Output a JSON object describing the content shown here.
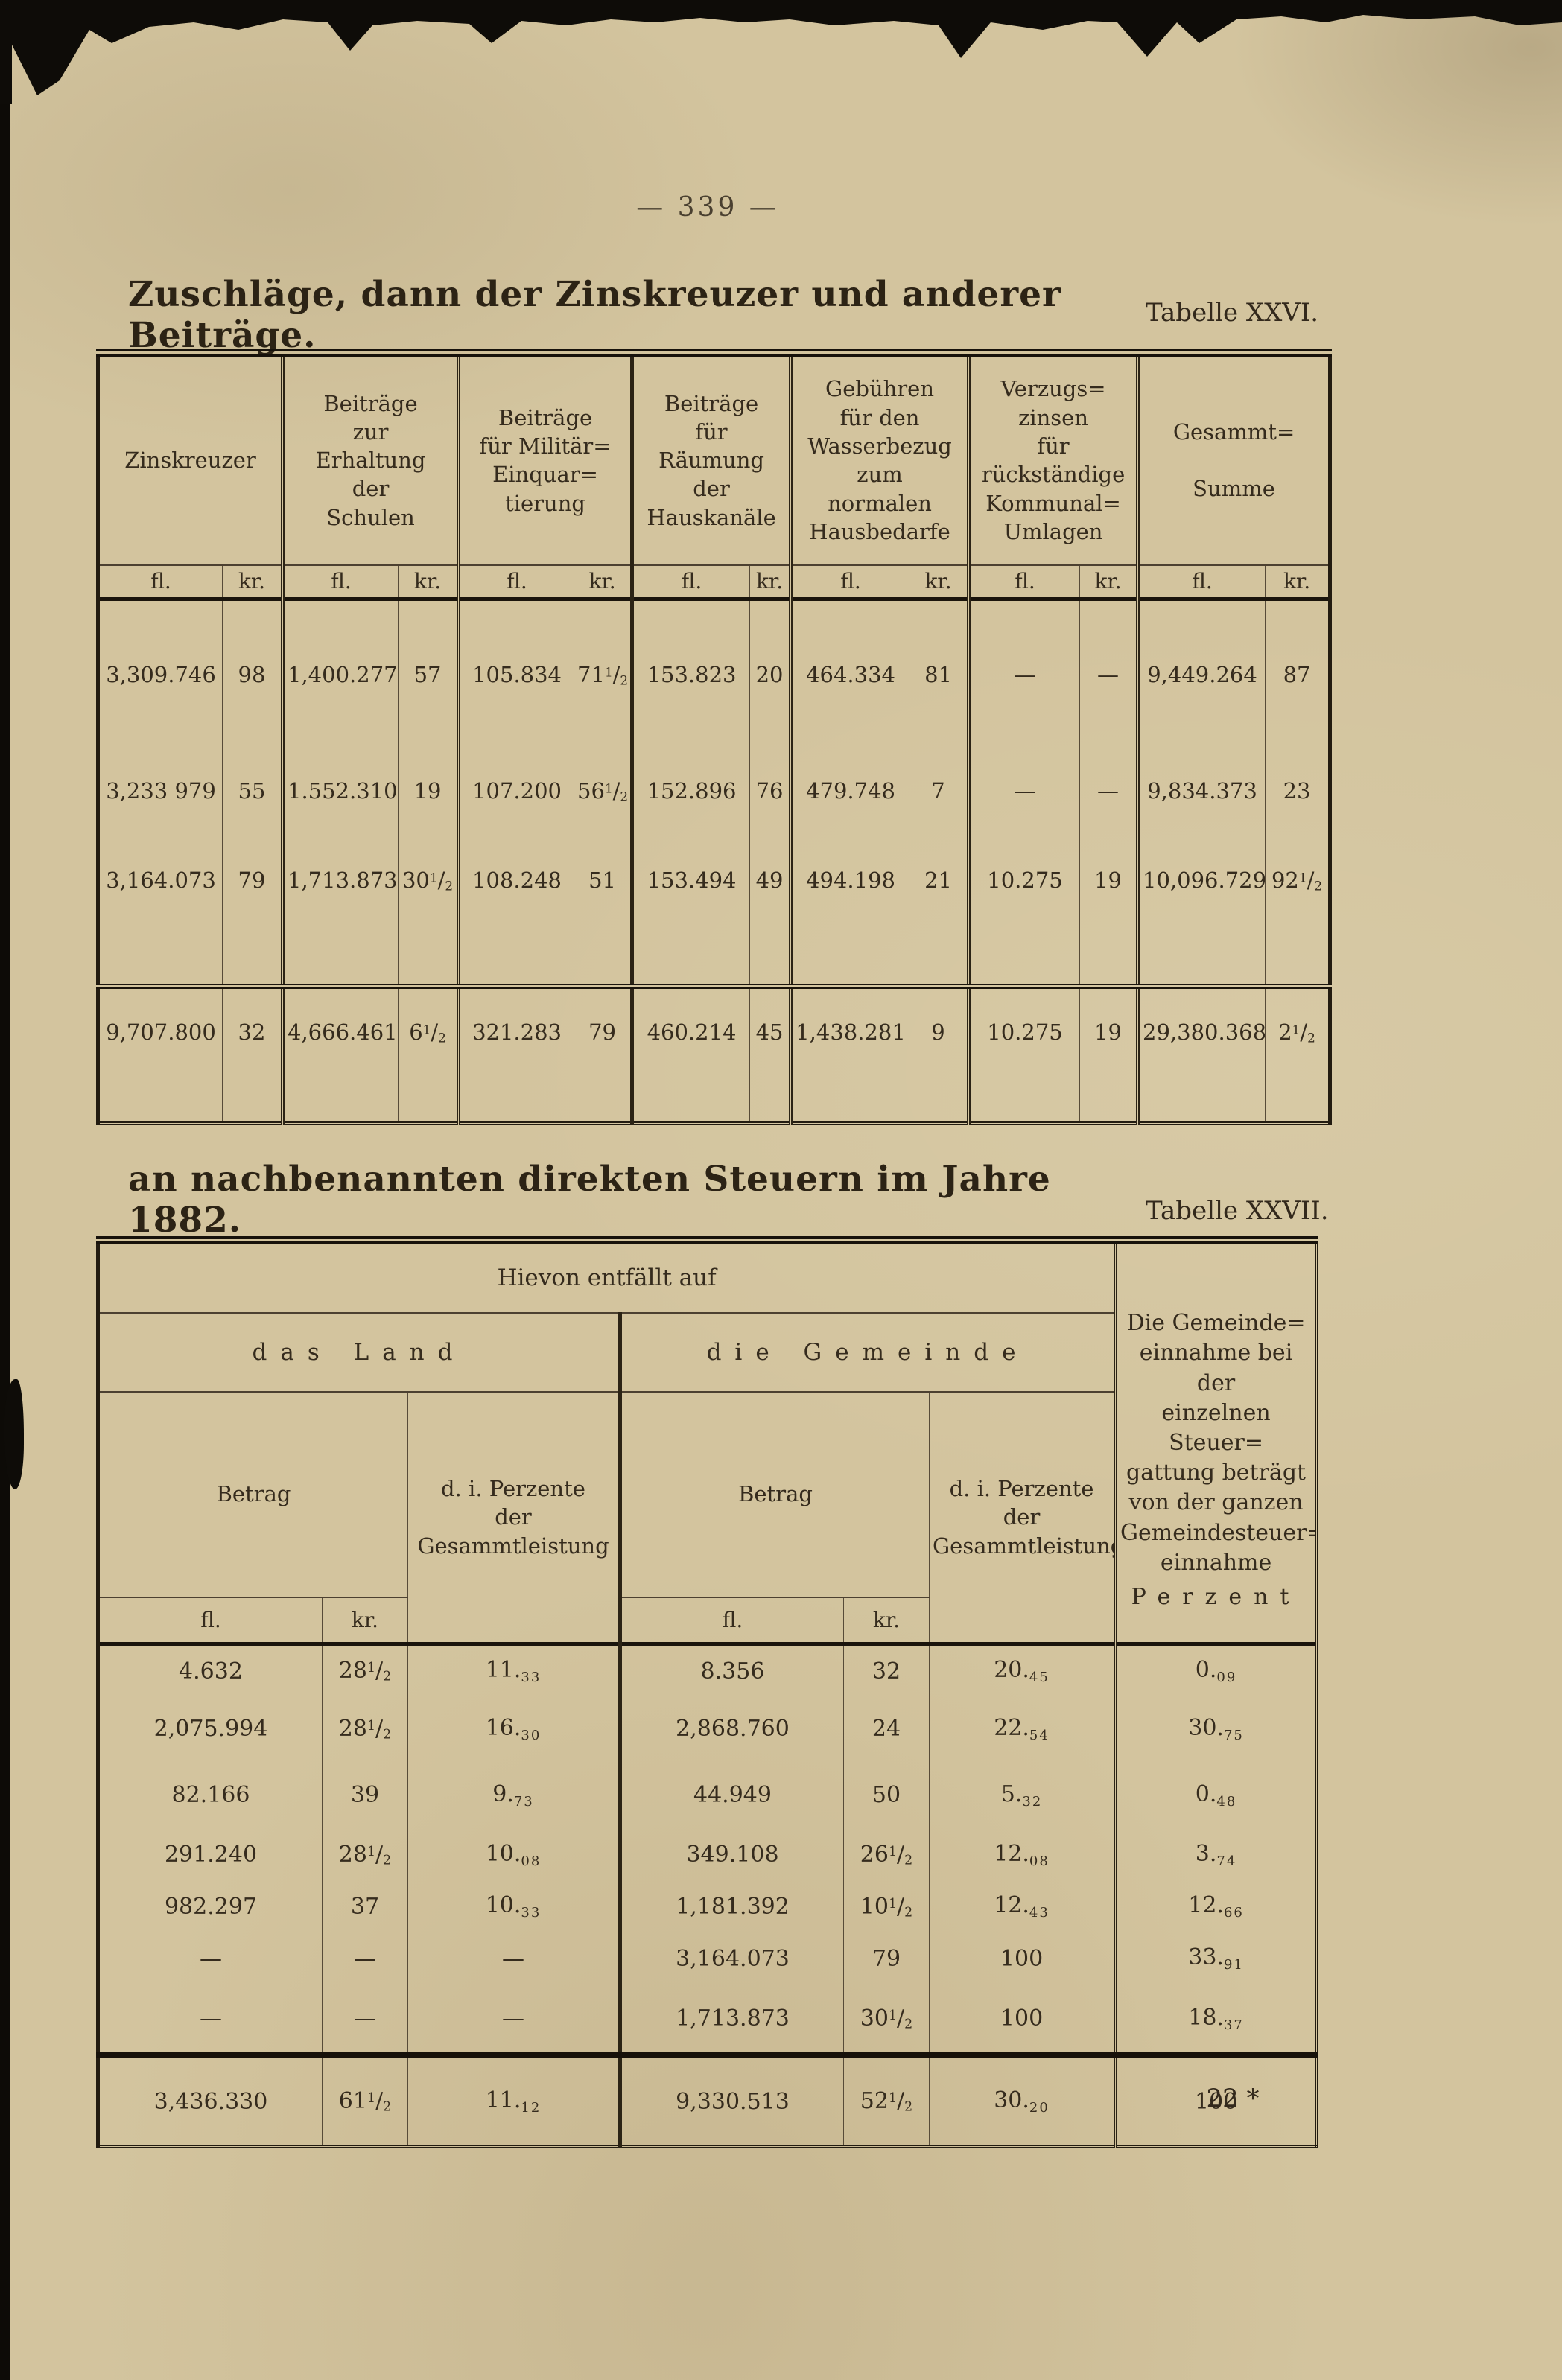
{
  "page": {
    "number_display": "— 339 —",
    "footer_mark": "22 *",
    "paper_color": "#d3c49e",
    "ink_color": "#33291c"
  },
  "table26": {
    "title": "Zuschläge, dann der Zinskreuzer und anderer Beiträge.",
    "label": "Tabelle XXVI.",
    "unit_fl": "fl.",
    "unit_kr": "kr.",
    "columns": [
      "Zinskreuzer",
      "Beiträge\nzur\nErhaltung\nder\nSchulen",
      "Beiträge\nfür Militär=\nEinquar=\ntierung",
      "Beiträge\nfür\nRäumung\nder\nHauskanäle",
      "Gebühren\nfür den\nWasserbezug\nzum\nnormalen\nHausbedarfe",
      "Verzugs=\nzinsen\nfür\nrückständige\nKommunal=\nUmlagen",
      "Gesammt=\n\nSumme"
    ],
    "rows": [
      [
        "3,309.746",
        "98",
        "1,400.277",
        "57",
        "105.834",
        "71½",
        "153.823",
        "20",
        "464.334",
        "81",
        "—",
        "—",
        "9,449.264",
        "87"
      ],
      [
        "3,233 979",
        "55",
        "1.552.310",
        "19",
        "107.200",
        "56½",
        "152.896",
        "76",
        "479.748",
        "7",
        "—",
        "—",
        "9,834.373",
        "23"
      ],
      [
        "3,164.073",
        "79",
        "1,713.873",
        "30½",
        "108.248",
        "51",
        "153.494",
        "49",
        "494.198",
        "21",
        "10.275",
        "19",
        "10,096.729",
        "92½"
      ]
    ],
    "total": [
      "9,707.800",
      "32",
      "4,666.461",
      "6½",
      "321.283",
      "79",
      "460.214",
      "45",
      "1,438.281",
      "9",
      "10.275",
      "19",
      "29,380.368",
      "2½"
    ]
  },
  "table27": {
    "title": "an nachbenannten direkten Steuern im Jahre 1882.",
    "label": "Tabelle XXVII.",
    "span_header": "Hievon entfällt auf",
    "group_land": "das Land",
    "group_gemeinde": "die Gemeinde",
    "betrag": "Betrag",
    "perzente": "d. i. Perzente\nder\nGesammtleistung",
    "right_header": "Die Gemeinde=\neinnahme bei der\neinzelnen Steuer=\ngattung beträgt\nvon der ganzen\nGemeindesteuer=\neinnahme",
    "right_header_last": "Perzent",
    "unit_fl": "fl.",
    "unit_kr": "kr.",
    "rows": [
      [
        "4.632",
        "28½",
        "11.33",
        "8.356",
        "32",
        "20.45",
        "0.09"
      ],
      [
        "2,075.994",
        "28½",
        "16.30",
        "2,868.760",
        "24",
        "22.54",
        "30.75"
      ],
      [
        "82.166",
        "39",
        "9.73",
        "44.949",
        "50",
        "5.32",
        "0.48"
      ],
      [
        "291.240",
        "28½",
        "10.08",
        "349.108",
        "26½",
        "12.08",
        "3.74"
      ],
      [
        "982.297",
        "37",
        "10.33",
        "1,181.392",
        "10½",
        "12.43",
        "12.66"
      ],
      [
        "—",
        "—",
        "—",
        "3,164.073",
        "79",
        "100",
        "33.91"
      ],
      [
        "—",
        "—",
        "—",
        "1,713.873",
        "30½",
        "100",
        "18.37"
      ]
    ],
    "total": [
      "3,436.330",
      "61½",
      "11.12",
      "9,330.513",
      "52½",
      "30.20",
      "100"
    ]
  }
}
